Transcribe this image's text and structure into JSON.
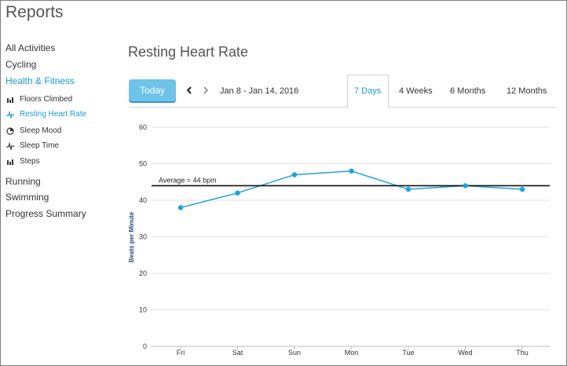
{
  "app": {
    "title": "Reports"
  },
  "sidebar": {
    "items": [
      {
        "label": "All Activities"
      },
      {
        "label": "Cycling"
      },
      {
        "label": "Health & Fitness",
        "active": true
      }
    ],
    "sub_items": [
      {
        "label": "Floors Climbed",
        "icon": "bar-chart-icon"
      },
      {
        "label": "Resting Heart Rate",
        "icon": "heart-rate-icon",
        "active": true
      },
      {
        "label": "Sleep Mood",
        "icon": "pie-chart-icon"
      },
      {
        "label": "Sleep Time",
        "icon": "heart-rate-icon"
      },
      {
        "label": "Steps",
        "icon": "bar-chart-icon"
      }
    ],
    "bottom_items": [
      {
        "label": "Running"
      },
      {
        "label": "Swimming"
      },
      {
        "label": "Progress Summary"
      }
    ]
  },
  "main": {
    "title": "Resting Heart Rate",
    "today_label": "Today",
    "date_range": "Jan 8 - Jan 14, 2016",
    "tabs": [
      {
        "label": "7 Days",
        "active": true
      },
      {
        "label": "4 Weeks"
      },
      {
        "label": "6 Months"
      },
      {
        "label": "12 Months"
      }
    ]
  },
  "colors": {
    "accent": "#1a9bd7",
    "button": "#6ec3ea",
    "line": "#1aa3e0"
  },
  "chart_data": {
    "type": "line",
    "categories": [
      "Fri",
      "Sat",
      "Sun",
      "Mon",
      "Tue",
      "Wed",
      "Thu"
    ],
    "series": [
      {
        "values": [
          38,
          42,
          47,
          48,
          43,
          44,
          43
        ]
      }
    ],
    "average": {
      "value": 44,
      "label": "Average = 44 bpm"
    },
    "ylabel": "Beats per Minute",
    "ylim": [
      0,
      60
    ],
    "yticks": [
      0,
      10,
      20,
      30,
      40,
      50,
      60
    ],
    "grid": true
  }
}
